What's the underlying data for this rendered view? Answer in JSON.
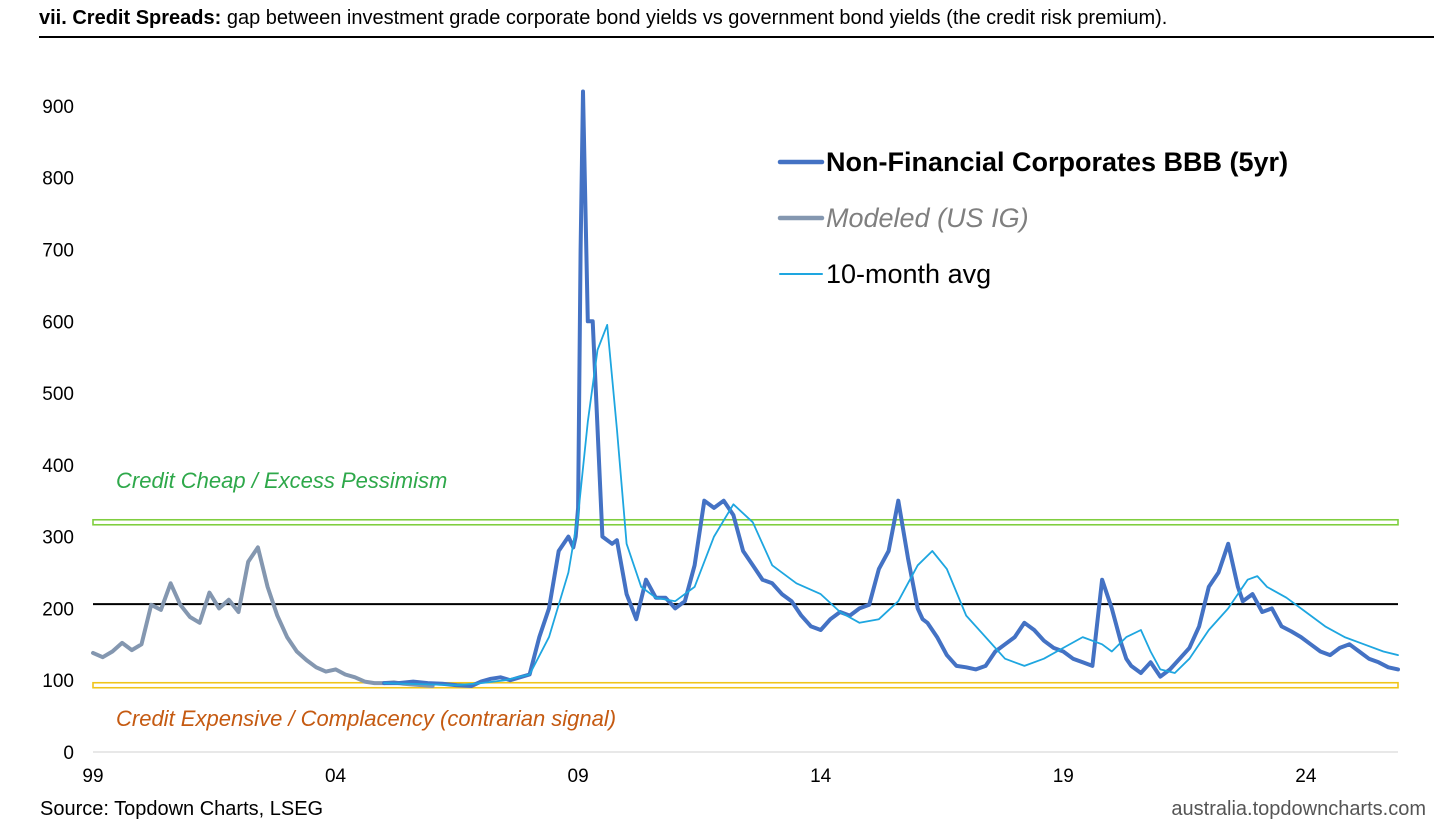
{
  "header": {
    "title_bold": "vii. Credit Spreads:",
    "title_rest": " gap between investment grade corporate bond yields vs government bond yields (the credit risk premium)."
  },
  "footer": {
    "source": "Source: Topdown Charts, LSEG",
    "site": "australia.topdowncharts.com"
  },
  "chart_data": {
    "type": "line",
    "title": "Credit Spreads",
    "ylim": [
      0,
      950
    ],
    "xlim": [
      1999.0,
      2025.9
    ],
    "yticks": [
      "0",
      "100",
      "200",
      "300",
      "400",
      "500",
      "600",
      "700",
      "800",
      "900"
    ],
    "xticks": [
      "99",
      "04",
      "09",
      "14",
      "19",
      "24"
    ],
    "xtick_years": [
      1999,
      2004,
      2009,
      2014,
      2019,
      2024
    ],
    "reference_lines": [
      {
        "name": "cheap-threshold",
        "value": 320,
        "color": "#7fce3f"
      },
      {
        "name": "mean-line",
        "value": 206,
        "color": "#000000"
      },
      {
        "name": "expensive-threshold",
        "value": 93,
        "color": "#f0c419"
      }
    ],
    "zone_labels": {
      "cheap": {
        "text": "Credit Cheap / Excess Pessimism",
        "color": "#2ea84a"
      },
      "expensive": {
        "text": "Credit Expensive / Complacency (contrarian signal)",
        "color": "#c55a11"
      }
    },
    "legend": [
      {
        "name": "Non-Financial Corporates BBB (5yr)",
        "color": "#4472c4",
        "style": "bold"
      },
      {
        "name": "Modeled (US IG)",
        "color": "#8497b0",
        "style": "italic"
      },
      {
        "name": "10-month avg",
        "color": "#1ea6e0",
        "style": "normal"
      }
    ],
    "series": [
      {
        "name": "Modeled (US IG)",
        "color": "#8497b0",
        "x": [
          1999.0,
          1999.2,
          1999.4,
          1999.6,
          1999.8,
          2000.0,
          2000.2,
          2000.4,
          2000.6,
          2000.8,
          2001.0,
          2001.2,
          2001.4,
          2001.6,
          2001.8,
          2002.0,
          2002.2,
          2002.4,
          2002.6,
          2002.8,
          2003.0,
          2003.2,
          2003.4,
          2003.6,
          2003.8,
          2004.0,
          2004.2,
          2004.4,
          2004.6,
          2004.8,
          2005.0,
          2005.2,
          2005.4,
          2005.6,
          2005.8,
          2006.0
        ],
        "values": [
          138,
          132,
          140,
          152,
          142,
          150,
          205,
          198,
          235,
          205,
          188,
          180,
          222,
          200,
          212,
          195,
          265,
          285,
          230,
          190,
          160,
          140,
          128,
          118,
          112,
          115,
          108,
          104,
          98,
          96,
          96,
          97,
          95,
          94,
          93,
          92
        ]
      },
      {
        "name": "Non-Financial Corporates BBB (5yr)",
        "color": "#4472c4",
        "x": [
          2005.0,
          2005.3,
          2005.6,
          2005.9,
          2006.2,
          2006.5,
          2006.8,
          2007.0,
          2007.2,
          2007.4,
          2007.6,
          2007.8,
          2008.0,
          2008.2,
          2008.4,
          2008.6,
          2008.8,
          2008.9,
          2008.95,
          2009.0,
          2009.05,
          2009.1,
          2009.2,
          2009.3,
          2009.5,
          2009.7,
          2009.8,
          2010.0,
          2010.2,
          2010.4,
          2010.6,
          2010.8,
          2011.0,
          2011.2,
          2011.4,
          2011.6,
          2011.8,
          2012.0,
          2012.2,
          2012.4,
          2012.6,
          2012.8,
          2013.0,
          2013.2,
          2013.4,
          2013.6,
          2013.8,
          2014.0,
          2014.2,
          2014.4,
          2014.6,
          2014.8,
          2015.0,
          2015.2,
          2015.4,
          2015.6,
          2015.8,
          2016.0,
          2016.1,
          2016.2,
          2016.4,
          2016.6,
          2016.8,
          2017.0,
          2017.2,
          2017.4,
          2017.6,
          2017.8,
          2018.0,
          2018.2,
          2018.4,
          2018.6,
          2018.8,
          2019.0,
          2019.2,
          2019.4,
          2019.6,
          2019.8,
          2020.0,
          2020.2,
          2020.3,
          2020.4,
          2020.6,
          2020.8,
          2021.0,
          2021.2,
          2021.4,
          2021.6,
          2021.8,
          2022.0,
          2022.2,
          2022.4,
          2022.6,
          2022.7,
          2022.9,
          2023.1,
          2023.3,
          2023.5,
          2023.7,
          2023.9,
          2024.1,
          2024.3,
          2024.5,
          2024.7,
          2024.9,
          2025.1,
          2025.3,
          2025.5,
          2025.7,
          2025.9
        ],
        "values": [
          96,
          96,
          98,
          96,
          95,
          93,
          92,
          98,
          102,
          104,
          100,
          104,
          108,
          160,
          200,
          280,
          300,
          285,
          300,
          340,
          700,
          920,
          600,
          600,
          300,
          290,
          295,
          220,
          185,
          240,
          215,
          215,
          200,
          210,
          260,
          350,
          340,
          350,
          330,
          280,
          260,
          240,
          235,
          220,
          210,
          190,
          175,
          170,
          185,
          195,
          190,
          200,
          205,
          255,
          280,
          350,
          270,
          200,
          185,
          180,
          160,
          135,
          120,
          118,
          115,
          120,
          140,
          150,
          160,
          180,
          170,
          155,
          145,
          140,
          130,
          125,
          120,
          240,
          200,
          150,
          130,
          120,
          110,
          125,
          105,
          115,
          130,
          145,
          175,
          230,
          250,
          290,
          230,
          210,
          220,
          195,
          200,
          175,
          168,
          160,
          150,
          140,
          135,
          145,
          150,
          140,
          130,
          125,
          118,
          115
        ]
      },
      {
        "name": "10-month avg",
        "color": "#1ea6e0",
        "x": [
          2005.0,
          2005.5,
          2006.0,
          2006.5,
          2007.0,
          2007.5,
          2008.0,
          2008.4,
          2008.8,
          2009.0,
          2009.2,
          2009.4,
          2009.6,
          2009.8,
          2010.0,
          2010.3,
          2010.6,
          2011.0,
          2011.4,
          2011.8,
          2012.2,
          2012.6,
          2013.0,
          2013.5,
          2014.0,
          2014.4,
          2014.8,
          2015.2,
          2015.6,
          2016.0,
          2016.3,
          2016.6,
          2017.0,
          2017.4,
          2017.8,
          2018.2,
          2018.6,
          2019.0,
          2019.4,
          2019.8,
          2020.0,
          2020.3,
          2020.6,
          2020.8,
          2021.0,
          2021.3,
          2021.6,
          2022.0,
          2022.4,
          2022.8,
          2023.0,
          2023.2,
          2023.6,
          2024.0,
          2024.4,
          2024.8,
          2025.2,
          2025.6,
          2025.9
        ],
        "values": [
          96,
          95,
          94,
          93,
          96,
          100,
          108,
          160,
          250,
          330,
          460,
          560,
          595,
          450,
          290,
          230,
          215,
          210,
          230,
          300,
          345,
          320,
          260,
          235,
          220,
          195,
          180,
          185,
          210,
          260,
          280,
          255,
          190,
          160,
          130,
          120,
          130,
          145,
          160,
          150,
          140,
          160,
          170,
          140,
          115,
          110,
          130,
          170,
          200,
          240,
          245,
          230,
          215,
          195,
          175,
          160,
          150,
          140,
          135
        ]
      }
    ]
  }
}
